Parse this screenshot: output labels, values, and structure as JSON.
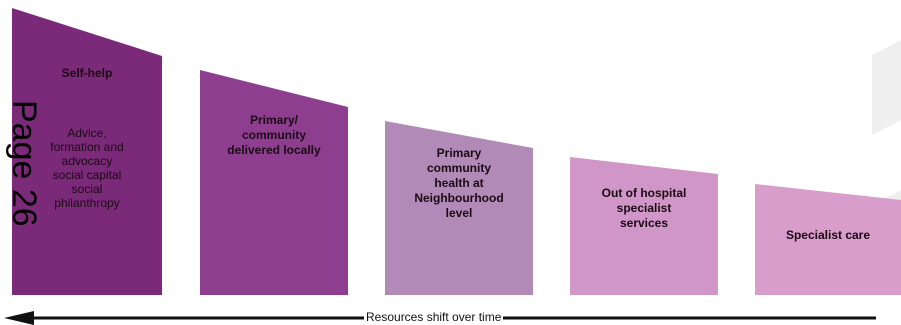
{
  "blocks": [
    {
      "id": "self-help",
      "title": "Self-help",
      "subtitle": "Advice,\nformation and\nadvocacy\nsocial capital\nsocial\nphilanthropy",
      "color": "#7a2a78"
    },
    {
      "id": "primary-community",
      "title": "Primary/\ncommunity\ndelivered locally",
      "subtitle": "",
      "color": "#8e3e8e"
    },
    {
      "id": "primary-neighbourhood",
      "title": "Primary\ncommunity\nhealth at\nNeighbourhood\nlevel",
      "subtitle": "",
      "color": "#b28ab8"
    },
    {
      "id": "out-of-hospital",
      "title": "Out of hospital\nspecialist\nservices",
      "subtitle": "",
      "color": "#d196c8"
    },
    {
      "id": "specialist-care",
      "title": "Specialist care",
      "subtitle": "",
      "color": "#d99dcc"
    }
  ],
  "page_stamp": "Page 26",
  "arrow": {
    "label": "Resources shift over time",
    "direction": "left",
    "color": "#111111"
  },
  "colors": {
    "background": "#ffffff",
    "watermark": "#ececec"
  }
}
